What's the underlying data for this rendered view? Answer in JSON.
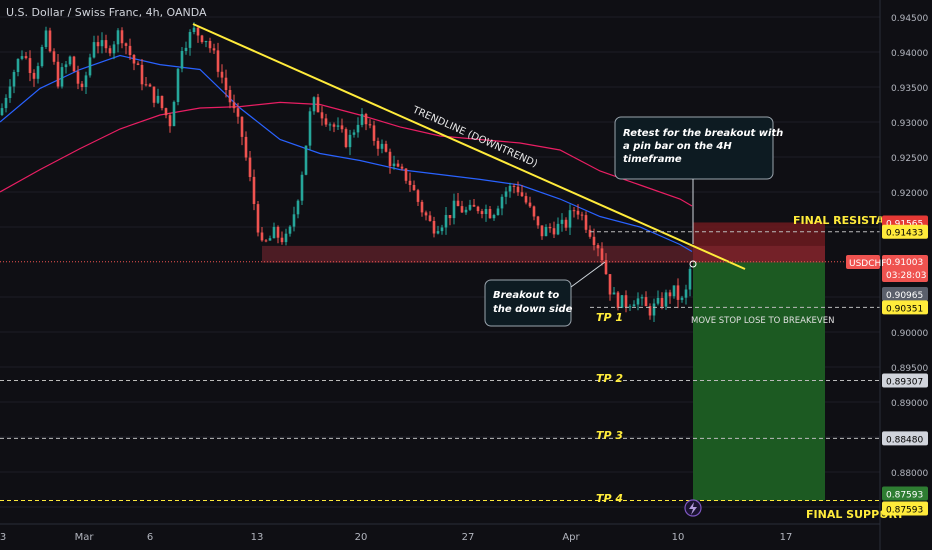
{
  "header": {
    "title": "U.S. Dollar / Swiss Franc, 4h, OANDA"
  },
  "chart_data": {
    "type": "candlestick",
    "symbol": "USDCHF",
    "timeframe": "4h",
    "x_labels": [
      "3",
      "Mar",
      "6",
      "13",
      "20",
      "27",
      "Apr",
      "10",
      "17"
    ],
    "y_ticks": [
      "0.94500",
      "0.94000",
      "0.93500",
      "0.93000",
      "0.92500",
      "0.92000",
      "0.91500",
      "0.90500",
      "0.90000",
      "0.89500",
      "0.89000",
      "0.88500",
      "0.88000",
      "0.87500"
    ],
    "ylim": [
      0.873,
      0.947
    ],
    "price_badges": {
      "current_symbol": "USDCHF",
      "current_price": "0.91003",
      "countdown": "03:28:03",
      "final_resistance": "0.91565",
      "entry": "0.91433",
      "mid_gray": "0.90965",
      "tp1": "0.90351",
      "tp2": "0.89307",
      "tp3": "0.88480",
      "final_support": "0.87593",
      "bottom_cut": "0.87593"
    },
    "levels": {
      "final_resistance": 0.91565,
      "entry_line": 0.91433,
      "tp1": 0.90351,
      "tp2": 0.89307,
      "tp3": 0.8848,
      "tp4": 0.87593,
      "current": 0.91003,
      "support_zone": [
        0.9099,
        0.9123
      ]
    },
    "labels": {
      "final_resistance": "FINAL RESISTANCE",
      "final_support": "FINAL SUPPORT",
      "tp1": "TP 1",
      "tp2": "TP 2",
      "tp3": "TP 3",
      "tp4": "TP 4",
      "trendline": "TRENDLINE (DOWNTREND)",
      "move_stop": "MOVE STOP LOSE TO BREAKEVEN"
    },
    "annotations": {
      "retest": [
        "Retest for the breakout with",
        "a pin bar on the 4H",
        "timeframe"
      ],
      "breakout": [
        "Breakout to",
        "the down side"
      ]
    },
    "colors": {
      "bull": "#26a69a",
      "bear": "#ef5350",
      "trendline": "#ffeb3b",
      "ma_blue": "#2962ff",
      "ma_red": "#e91e63",
      "green_zone": "#1b5e20",
      "red_zone": "#7f1d1d",
      "yellow_label": "#ffeb3b"
    }
  }
}
